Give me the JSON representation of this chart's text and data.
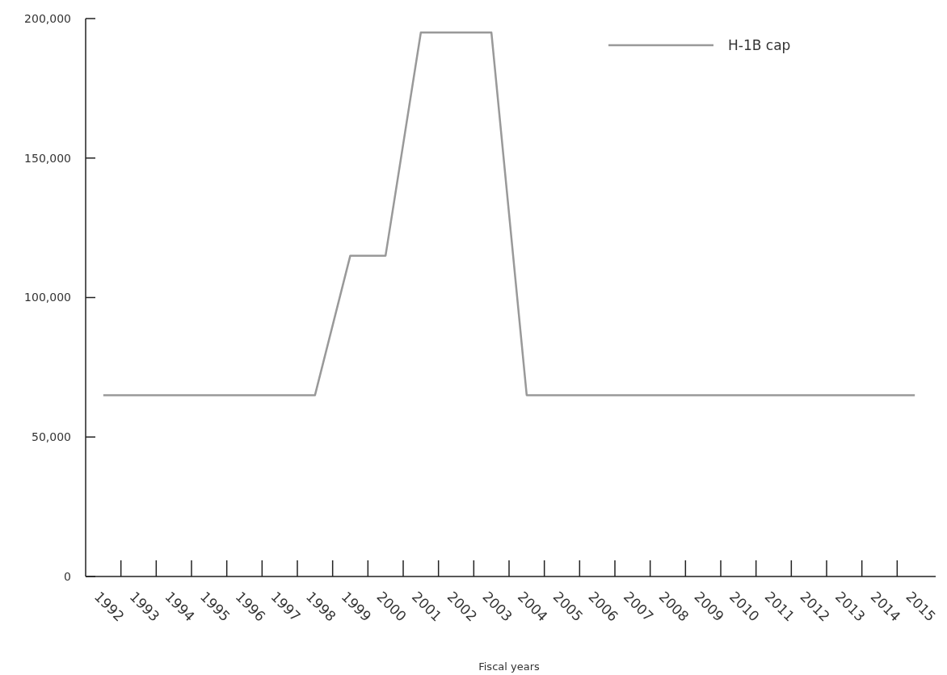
{
  "chart_data": {
    "type": "line",
    "xlabel": "Fiscal years",
    "categories": [
      "1992",
      "1993",
      "1994",
      "1995",
      "1996",
      "1997",
      "1998",
      "1999",
      "2000",
      "2001",
      "2002",
      "2003",
      "2004",
      "2005",
      "2006",
      "2007",
      "2008",
      "2009",
      "2010",
      "2011",
      "2012",
      "2013",
      "2014",
      "2015"
    ],
    "series": [
      {
        "name": "H-1B cap",
        "color": "#999999",
        "values": [
          65000,
          65000,
          65000,
          65000,
          65000,
          65000,
          65000,
          115000,
          115000,
          195000,
          195000,
          195000,
          65000,
          65000,
          65000,
          65000,
          65000,
          65000,
          65000,
          65000,
          65000,
          65000,
          65000,
          65000
        ]
      }
    ],
    "ylim": [
      0,
      200000
    ],
    "yticks": [
      {
        "value": 0,
        "label": "0"
      },
      {
        "value": 50000,
        "label": "50,000"
      },
      {
        "value": 100000,
        "label": "100,000"
      },
      {
        "value": 150000,
        "label": "150,000"
      },
      {
        "value": 200000,
        "label": "200,000"
      }
    ],
    "grid": false,
    "legend": "top right",
    "marker": "none",
    "line_style": "solid"
  }
}
